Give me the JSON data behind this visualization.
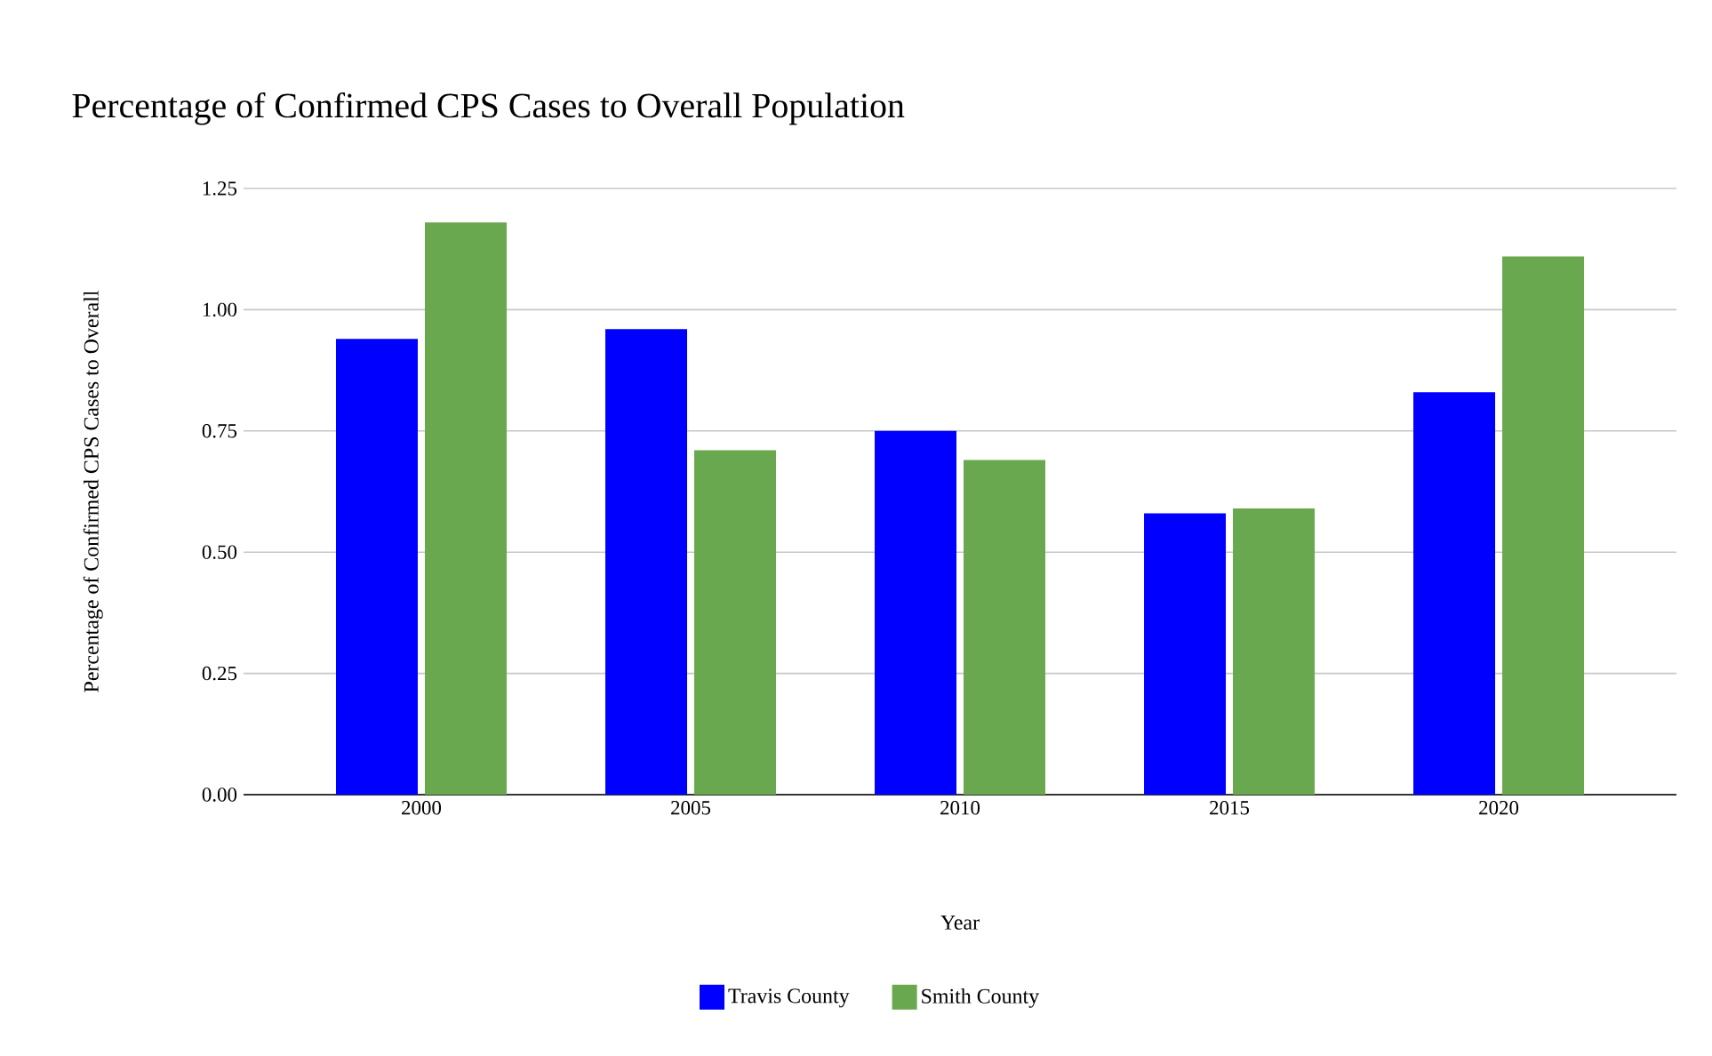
{
  "chart_data": {
    "type": "bar",
    "title": "Percentage of Confirmed CPS Cases to Overall Population",
    "xlabel": "Year",
    "ylabel": "Percentage of Confirmed CPS Cases to Overall",
    "categories": [
      "2000",
      "2005",
      "2010",
      "2015",
      "2020"
    ],
    "series": [
      {
        "name": "Travis County",
        "color": "#0000ff",
        "values": [
          0.94,
          0.96,
          0.75,
          0.58,
          0.83
        ]
      },
      {
        "name": "Smith County",
        "color": "#6aa84f",
        "values": [
          1.18,
          0.71,
          0.69,
          0.59,
          1.11
        ]
      }
    ],
    "ylim": [
      0,
      1.25
    ],
    "yticks": [
      {
        "value": 0,
        "label": "0.00"
      },
      {
        "value": 0.25,
        "label": "0.25"
      },
      {
        "value": 0.5,
        "label": "0.50"
      },
      {
        "value": 0.75,
        "label": "0.75"
      },
      {
        "value": 1.0,
        "label": "1.00"
      },
      {
        "value": 1.25,
        "label": "1.25"
      }
    ],
    "grid": "y",
    "legend": "bottom"
  }
}
